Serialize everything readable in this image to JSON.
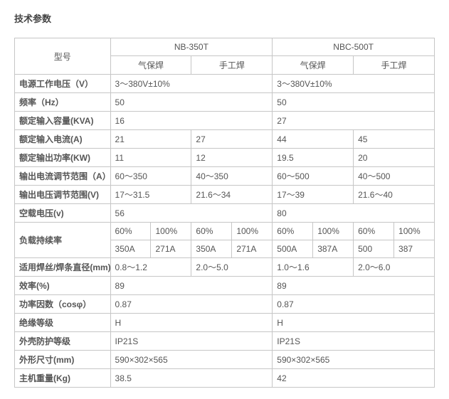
{
  "title": "技术参数",
  "header": {
    "model": "型号",
    "nb350t": "NB-350T",
    "nbc500t": "NBC-500T",
    "gas": "气保焊",
    "manual": "手工焊"
  },
  "rows": {
    "psu_voltage": {
      "label": "电源工作电压（V）",
      "a": "3～380V±10%",
      "b": "3～380V±10%"
    },
    "freq": {
      "label": "频率（Hz）",
      "a": "50",
      "b": "50"
    },
    "rated_cap": {
      "label": "额定输入容量(KVA)",
      "a": "16",
      "b": "27"
    },
    "rated_in_cur": {
      "label": "额定输入电流(A)",
      "a1": "21",
      "a2": "27",
      "b1": "44",
      "b2": "45"
    },
    "rated_out_pwr": {
      "label": "额定输出功率(KW)",
      "a1": "11",
      "a2": "12",
      "b1": "19.5",
      "b2": "20"
    },
    "out_cur_range": {
      "label": "输出电流调节范围（A）",
      "a1": "60～350",
      "a2": "40～350",
      "b1": "60～500",
      "b2": "40～500"
    },
    "out_v_range": {
      "label": "输出电压调节范围(V)",
      "a1": "17～31.5",
      "a2": "21.6～34",
      "b1": "17～39",
      "b2": "21.6～40"
    },
    "open_v": {
      "label": "空载电压(v)",
      "a": "56",
      "b": "80"
    },
    "duty": {
      "label": "负载持续率",
      "r1": {
        "a1": "60%",
        "a2": "100%",
        "a3": "60%",
        "a4": "100%",
        "b1": "60%",
        "b2": "100%",
        "b3": "60%",
        "b4": "100%"
      },
      "r2": {
        "a1": "350A",
        "a2": "271A",
        "a3": "350A",
        "a4": "271A",
        "b1": "500A",
        "b2": "387A",
        "b3": "500",
        "b4": "387"
      }
    },
    "wire_dia": {
      "label": "适用焊丝/焊条直径(mm)",
      "a1": "0.8～1.2",
      "a2": "2.0～5.0",
      "b1": "1.0～1.6",
      "b2": "2.0～6.0"
    },
    "eff": {
      "label": "效率(%)",
      "a": "89",
      "b": "89"
    },
    "pf": {
      "label": "功率因数（cosφ）",
      "a": "0.87",
      "b": "0.87"
    },
    "ins": {
      "label": "绝缘等级",
      "a": "H",
      "b": "H"
    },
    "ip": {
      "label": "外壳防护等级",
      "a": "IP21S",
      "b": "IP21S"
    },
    "dim": {
      "label": "外形尺寸(mm)",
      "a": "590×302×565",
      "b": "590×302×565"
    },
    "weight": {
      "label": "主机重量(Kg)",
      "a": "38.5",
      "b": "42"
    }
  }
}
